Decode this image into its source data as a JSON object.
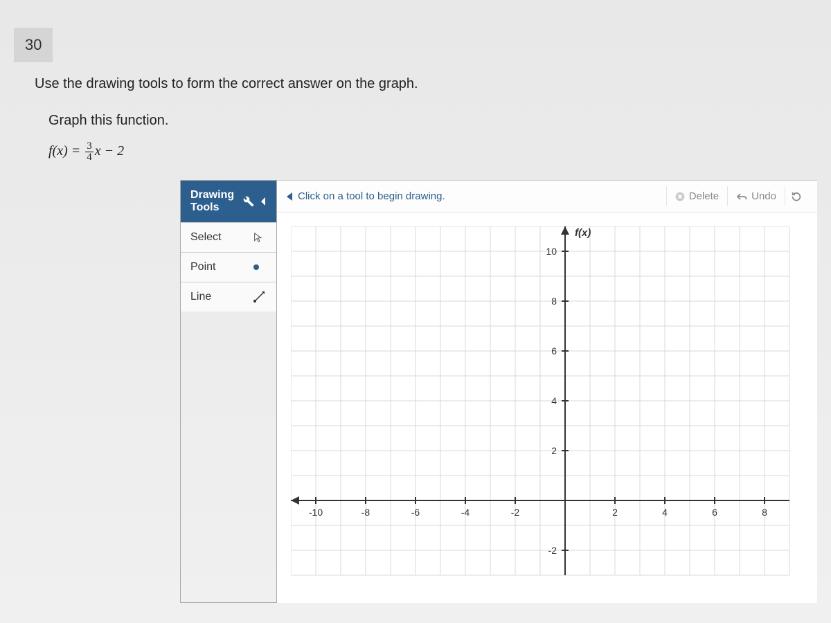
{
  "question": {
    "number": "30",
    "instruction": "Use the drawing tools to form the correct answer on the graph.",
    "sub_instruction": "Graph this function.",
    "formula_lhs": "f(x) = ",
    "formula_frac_num": "3",
    "formula_frac_den": "4",
    "formula_rhs": "x − 2"
  },
  "tools": {
    "header": "Drawing Tools",
    "items": [
      {
        "label": "Select",
        "icon": "cursor"
      },
      {
        "label": "Point",
        "icon": "dot"
      },
      {
        "label": "Line",
        "icon": "line"
      }
    ]
  },
  "toolbar": {
    "hint": "Click on a tool to begin drawing.",
    "delete": "Delete",
    "undo": "Undo"
  },
  "graph": {
    "axis_label": "f(x)",
    "x_ticks": [
      -10,
      -8,
      -6,
      -4,
      -2,
      2,
      4,
      6,
      8
    ],
    "y_ticks": [
      10,
      8,
      6,
      4,
      2,
      -2
    ],
    "xlim": [
      -11,
      9
    ],
    "ylim": [
      -3,
      11
    ],
    "grid_color": "#d8d8d8",
    "axis_color": "#333333",
    "background": "#ffffff",
    "cell_size": 36
  },
  "colors": {
    "header_bg": "#2c5f8d",
    "hint_text": "#2c5f8d",
    "muted": "#888888"
  }
}
